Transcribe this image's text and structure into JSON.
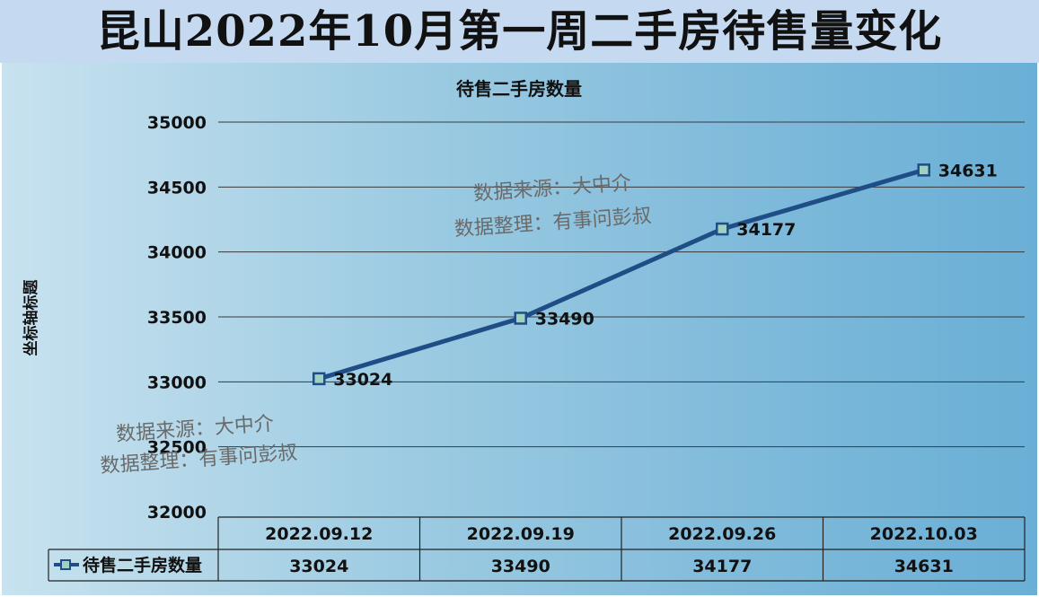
{
  "banner": {
    "title": "昆山2022年10月第一周二手房待售量变化"
  },
  "watermarks": [
    {
      "line1": "数据来源：大中介",
      "line2": "数据整理：有事问彭叔"
    },
    {
      "line1": "数据来源：大中介",
      "line2": "数据整理：有事问彭叔"
    }
  ],
  "colors": {
    "line": "#1f4e86",
    "grid": "#3a3a3a",
    "marker_fill": "#9fd0c0",
    "banner": "#c5d9f0"
  },
  "chart_data": {
    "type": "line",
    "title": "待售二手房数量",
    "ylabel": "坐标轴标题",
    "xlabel": "",
    "categories": [
      "2022.09.12",
      "2022.09.19",
      "2022.09.26",
      "2022.10.03"
    ],
    "series": [
      {
        "name": "待售二手房数量",
        "values": [
          33024,
          33490,
          34177,
          34631
        ]
      }
    ],
    "ylim": [
      32000,
      35000
    ],
    "yticks": [
      32000,
      32500,
      33000,
      33500,
      34000,
      34500,
      35000
    ],
    "grid": true,
    "data_labels": true,
    "data_table": true,
    "legend": "data-table-left"
  }
}
